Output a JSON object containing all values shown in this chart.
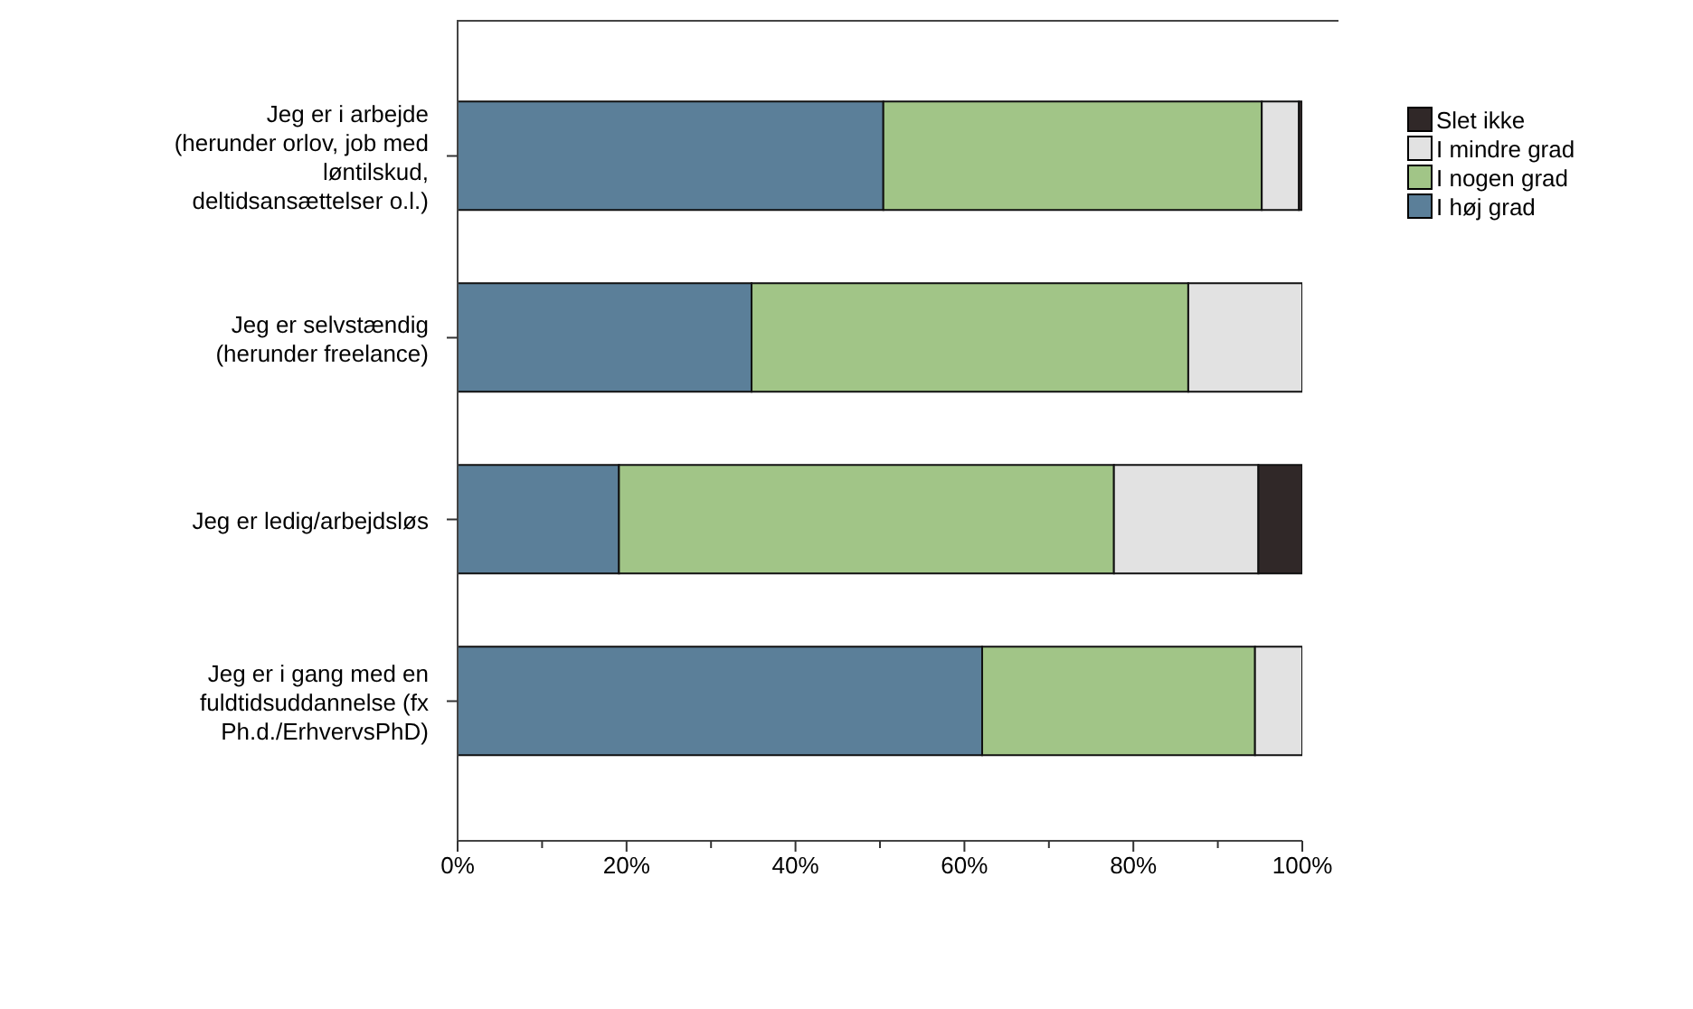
{
  "chart_data": {
    "type": "bar",
    "orientation": "horizontal",
    "stacked": true,
    "categories": [
      "Jeg er i arbejde\n(herunder orlov, job med\nløntilskud,\ndeltidsansættelser o.l.)",
      "Jeg er selvstændig\n(herunder freelance)",
      "Jeg er ledig/arbejdsløs",
      "Jeg er i gang med en\nfuldtidsuddannelse (fx\nPh.d./ErhvervsPhD)"
    ],
    "series": [
      {
        "name": "I høj grad",
        "color": "#5b7f99",
        "values": [
          50.4,
          34.8,
          19.1,
          62.1
        ]
      },
      {
        "name": "I nogen grad",
        "color": "#a1c587",
        "values": [
          44.8,
          51.7,
          58.6,
          32.3
        ]
      },
      {
        "name": "I mindre grad",
        "color": "#e2e2e2",
        "values": [
          4.4,
          13.5,
          17.1,
          5.6
        ]
      },
      {
        "name": "Slet ikke",
        "color": "#302828",
        "values": [
          0.4,
          0,
          5.2,
          0
        ]
      }
    ],
    "xlim": [
      0,
      100
    ],
    "xticks": [
      {
        "value": 0,
        "label": "0%"
      },
      {
        "value": 10,
        "label": null
      },
      {
        "value": 20,
        "label": "20%"
      },
      {
        "value": 30,
        "label": null
      },
      {
        "value": 40,
        "label": "40%"
      },
      {
        "value": 50,
        "label": null
      },
      {
        "value": 60,
        "label": "60%"
      },
      {
        "value": 70,
        "label": null
      },
      {
        "value": 80,
        "label": "80%"
      },
      {
        "value": 90,
        "label": null
      },
      {
        "value": 100,
        "label": "100%"
      }
    ],
    "grid": false,
    "legend": "top right"
  }
}
